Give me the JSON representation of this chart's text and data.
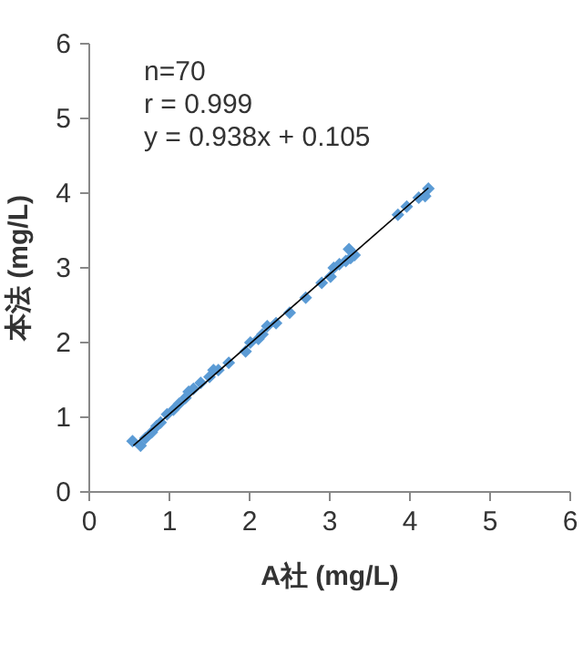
{
  "chart_data": {
    "type": "scatter",
    "xlabel": "A社 (mg/L)",
    "ylabel": "本法 (mg/L)",
    "annotations": [
      "n=70",
      "r = 0.999",
      "y = 0.938x + 0.105"
    ],
    "xlim": [
      0,
      6
    ],
    "ylim": [
      0,
      6
    ],
    "xticks": [
      0,
      1,
      2,
      3,
      4,
      5,
      6
    ],
    "yticks": [
      0,
      1,
      2,
      3,
      4,
      5,
      6
    ],
    "grid": false,
    "marker": "diamond",
    "series": [
      {
        "color": "#5b9bd5",
        "x": [
          0.54,
          0.64,
          0.7,
          0.78,
          0.84,
          0.89,
          0.97,
          1.05,
          1.12,
          1.2,
          1.24,
          1.3,
          1.39,
          1.5,
          1.55,
          1.61,
          1.74,
          1.95,
          2.01,
          2.11,
          2.16,
          2.22,
          2.33,
          2.5,
          2.7,
          2.9,
          3.01,
          3.05,
          3.12,
          3.2,
          3.24,
          3.31,
          3.26,
          3.85,
          3.96,
          4.11,
          4.19,
          4.23
        ],
        "values": [
          0.68,
          0.62,
          0.72,
          0.8,
          0.88,
          0.93,
          1.04,
          1.1,
          1.18,
          1.26,
          1.34,
          1.38,
          1.46,
          1.54,
          1.63,
          1.63,
          1.73,
          1.88,
          2.0,
          2.05,
          2.11,
          2.22,
          2.26,
          2.4,
          2.6,
          2.8,
          2.88,
          3.0,
          3.05,
          3.09,
          3.25,
          3.17,
          3.13,
          3.71,
          3.82,
          3.94,
          3.96,
          4.06
        ]
      },
      {
        "type": "line",
        "color": "#000000",
        "marker": "none",
        "x": [
          0.55,
          4.23
        ],
        "values": [
          0.62,
          4.07
        ]
      }
    ]
  }
}
